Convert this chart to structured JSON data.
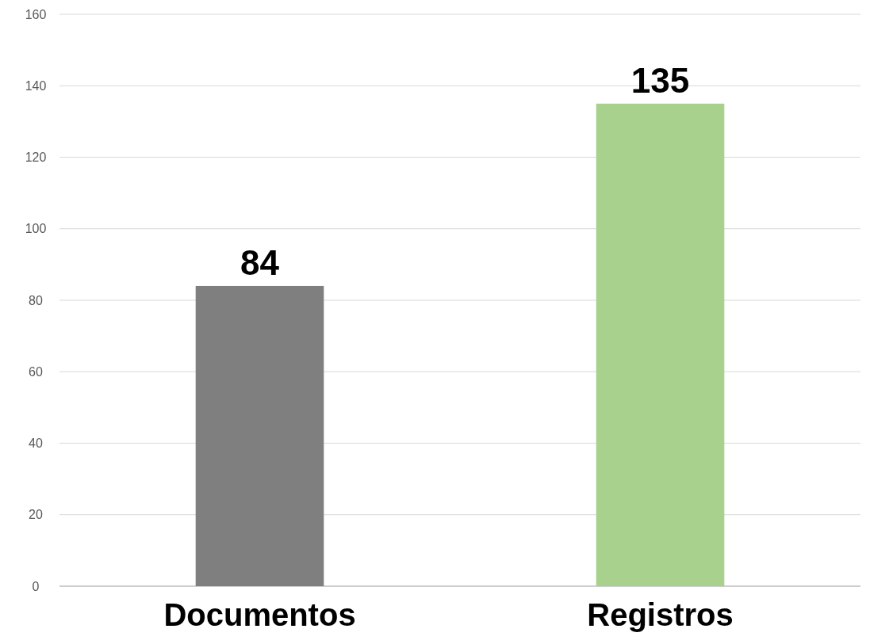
{
  "chart_data": {
    "type": "bar",
    "categories": [
      "Documentos",
      "Registros"
    ],
    "values": [
      84,
      135
    ],
    "colors": [
      "#7f7f7f",
      "#a9d18e"
    ],
    "ylim": [
      0,
      160
    ],
    "yticks": [
      0,
      20,
      40,
      60,
      80,
      100,
      120,
      140,
      160
    ],
    "grid": "y",
    "data_labels": true
  }
}
